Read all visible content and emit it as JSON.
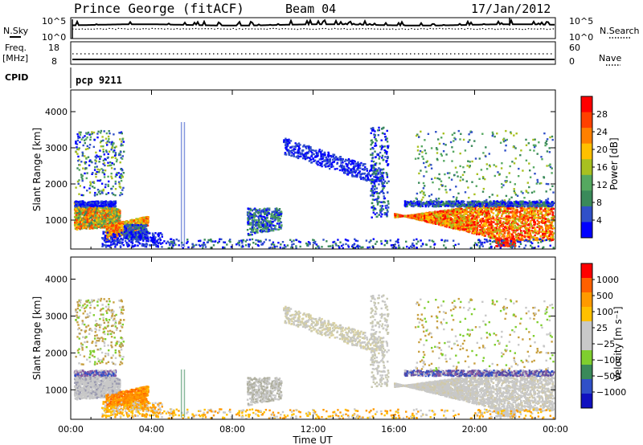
{
  "header": {
    "station": "Prince George (fitACF)",
    "beam": "Beam 04",
    "date": "17/Jan/2012"
  },
  "labels": {
    "nsky": "N.Sky",
    "nsearch": "N.Search",
    "freq": "Freq.",
    "freq_unit": "[MHz]",
    "nave": "Nave",
    "cpid": "CPID",
    "program": "pcp 9211",
    "yaxis": "Slant Range [km]",
    "xaxis": "Time UT"
  },
  "noise_axis": {
    "left_ticks": [
      "10^5",
      "10^0"
    ],
    "right_ticks": [
      "10^5",
      "10^0"
    ]
  },
  "freq_axis": {
    "left_ticks": [
      "18",
      "8"
    ],
    "right_ticks": [
      "60",
      "0"
    ]
  },
  "colors": {
    "power": [
      "#0000ff",
      "#3050c8",
      "#3a8a5a",
      "#55a860",
      "#a8c020",
      "#ffc000",
      "#ff8000",
      "#ff4000",
      "#ff0000"
    ],
    "velocity": [
      "#ff0000",
      "#ff6000",
      "#ff9a00",
      "#ffc000",
      "#c8c8c8",
      "#c8c8c8",
      "#7fce2e",
      "#3a8a5a",
      "#3050c8",
      "#1010c0"
    ]
  },
  "chart_data": [
    {
      "type": "heatmap",
      "name": "power",
      "ylabel": "Slant Range [km]",
      "xlabel": "",
      "xlim": [
        0,
        24
      ],
      "ylim": [
        200,
        4600
      ],
      "x_ticks": [
        0,
        4,
        8,
        12,
        16,
        20,
        24
      ],
      "y_ticks": [
        1000,
        2000,
        3000,
        4000
      ],
      "colorbar": {
        "label": "Power [dB]",
        "ticks": [
          "4",
          "8",
          "12",
          "16",
          "20",
          "24",
          "28"
        ],
        "min": 0,
        "max": 32
      }
    },
    {
      "type": "heatmap",
      "name": "velocity",
      "ylabel": "Slant Range [km]",
      "xlabel": "Time UT",
      "xlim": [
        0,
        24
      ],
      "ylim": [
        200,
        4600
      ],
      "x_ticks": [
        0,
        4,
        8,
        12,
        16,
        20,
        24
      ],
      "x_tick_labels": [
        "00:00",
        "04:00",
        "08:00",
        "12:00",
        "16:00",
        "20:00",
        "00:00"
      ],
      "y_ticks": [
        1000,
        2000,
        3000,
        4000
      ],
      "colorbar": {
        "label": "Velocity [m s⁻¹]",
        "ticks": [
          "1000",
          "500",
          "100",
          "25",
          "−25",
          "−100",
          "−500",
          "−1000"
        ]
      }
    }
  ]
}
